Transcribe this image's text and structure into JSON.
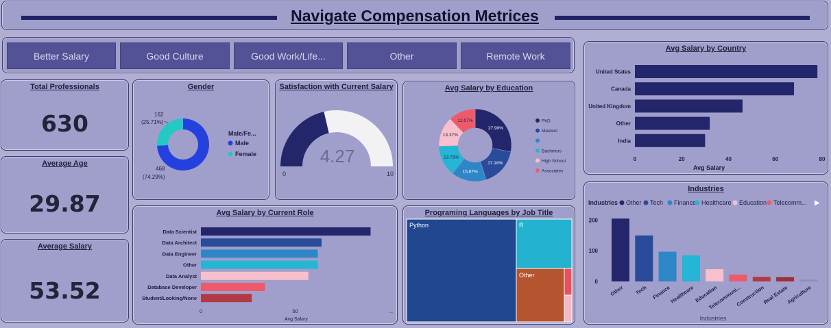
{
  "header": {
    "title": "Navigate Compensation Metrices"
  },
  "slicer": {
    "buttons": [
      "Better Salary",
      "Good Culture",
      "Good Work/Life...",
      "Other",
      "Remote Work"
    ]
  },
  "kpis": {
    "total_professionals": {
      "label": "Total Professionals",
      "value": "630"
    },
    "average_age": {
      "label": "Average Age",
      "value": "29.87"
    },
    "average_salary": {
      "label": "Average Salary",
      "value": "53.52"
    }
  },
  "colors": {
    "navy": "#24266b",
    "royal": "#2f4aa8",
    "blue": "#2f86c6",
    "cyan": "#25b5d5",
    "pink": "#f8bfcc",
    "red": "#ef5a6a",
    "darkred": "#b13a44",
    "gray": "#8d8cbf",
    "bg": "#a09fcc"
  },
  "gender": {
    "title": "Gender",
    "legend_title": "Male/Fe...",
    "labels": {
      "male": "Male",
      "female": "Female"
    },
    "callouts": {
      "female_count": "162",
      "female_pct": "(25.71%)",
      "male_count": "468",
      "male_pct": "(74.29%)"
    },
    "chart_data": {
      "type": "pie",
      "categories": [
        "Male",
        "Female"
      ],
      "values": [
        468,
        162
      ]
    }
  },
  "satisfaction": {
    "title": "Satisfaction with Current Salary",
    "value": "4.27",
    "min": "0",
    "max": "10",
    "chart_data": {
      "type": "gauge",
      "value": 4.27,
      "min": 0,
      "max": 10
    }
  },
  "education": {
    "title": "Avg Salary by Education",
    "legend": [
      "PhD",
      "Masters",
      "",
      "Bachelors",
      "High School",
      "Associates"
    ],
    "chart_data": {
      "type": "pie",
      "categories": [
        "PhD",
        "Masters",
        "",
        "Bachelors",
        "High School",
        "Associates"
      ],
      "values": [
        27.9,
        17.18,
        15.67,
        13.73,
        13.37,
        12.07
      ],
      "data_labels": [
        "27.90%",
        "17.18%",
        "15.67%",
        "13.73%",
        "13.37%",
        "12.07%"
      ]
    }
  },
  "country": {
    "title": "Avg Salary by Country",
    "xlabel": "Avg Salary",
    "chart_data": {
      "type": "bar",
      "categories": [
        "United States",
        "Canada",
        "United Kingdom",
        "Other",
        "India"
      ],
      "values": [
        78,
        68,
        46,
        32,
        30
      ],
      "xlim": [
        0,
        80
      ],
      "ticks": [
        "0",
        "20",
        "40",
        "60",
        "80"
      ]
    }
  },
  "role": {
    "title": "Avg Salary by Current Role",
    "xlabel": "Avg Salary",
    "chart_data": {
      "type": "bar",
      "categories": [
        "Data Scientist",
        "Data Architect",
        "Data Engineer",
        "Other",
        "Data Analyst",
        "Database Developer",
        "Student/Looking/None"
      ],
      "values": [
        90,
        64,
        62,
        62,
        57,
        34,
        27
      ],
      "ticks": [
        "0",
        "50",
        "..."
      ]
    }
  },
  "languages": {
    "title": "Programing Languages by Job Title",
    "chart_data": {
      "type": "treemap",
      "categories": [
        "Python",
        "R",
        "Other",
        "",
        ""
      ],
      "labels": [
        "Python",
        "R",
        "Other"
      ]
    }
  },
  "industries": {
    "title": "Industries",
    "legend_title": "Industries",
    "legend": [
      "Other",
      "Tech",
      "Finance",
      "Healthcare",
      "Education",
      "Telecomm..."
    ],
    "xlabel": "Industries",
    "chart_data": {
      "type": "bar",
      "categories": [
        "Other",
        "Tech",
        "Finance",
        "Healthcare",
        "Education",
        "Telecommuni...",
        "Construction",
        "Real Estate",
        "Agriculture"
      ],
      "values": [
        205,
        150,
        97,
        85,
        40,
        22,
        15,
        14,
        6
      ],
      "ylim": [
        0,
        230
      ],
      "ticks": [
        "0",
        "100",
        "200"
      ]
    }
  }
}
